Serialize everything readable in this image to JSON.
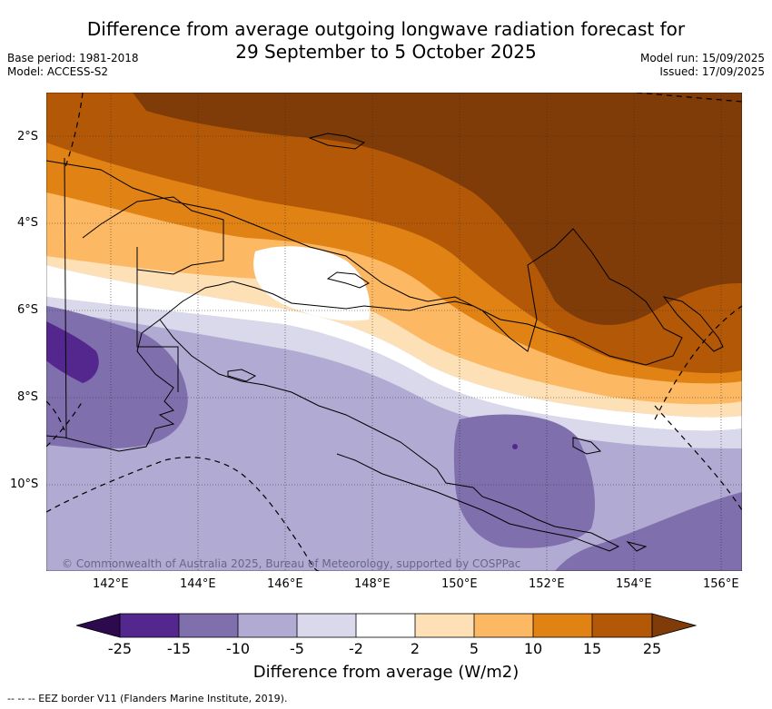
{
  "header": {
    "title_line1": "Difference from average outgoing longwave radiation forecast for",
    "title_line2": "29 September to 5 October 2025",
    "base_period": "Base period: 1981-2018",
    "model": "Model: ACCESS-S2",
    "model_run": "Model run: 15/09/2025",
    "issued": "Issued: 17/09/2025"
  },
  "map": {
    "lat_labels": [
      "2°S",
      "4°S",
      "6°S",
      "8°S",
      "10°S"
    ],
    "lon_labels": [
      "142°E",
      "144°E",
      "146°E",
      "148°E",
      "150°E",
      "152°E",
      "154°E",
      "156°E"
    ],
    "copyright": "© Commonwealth of Australia 2025, Bureau of Meteorology, supported by COSPPac",
    "colors": {
      "lt_-25": "#2d0a4e",
      "-25_-15": "#54278f",
      "-15_-10": "#7f6fac",
      "-10_-5": "#b1abd3",
      "-5_-2": "#d9d9eb",
      "-2_2": "#ffffff",
      "2_5": "#fde0b6",
      "5_10": "#fdb863",
      "10_15": "#e08214",
      "15_25": "#b35806",
      "gt_25": "#7f3b08"
    }
  },
  "colorbar": {
    "labels": [
      "-25",
      "-15",
      "-10",
      "-5",
      "-2",
      "2",
      "5",
      "10",
      "15",
      "25"
    ],
    "title": "Difference from average (W/m2)"
  },
  "footer": {
    "legend": "--  --  -- EEZ border V11 (Flanders Marine Institute, 2019)."
  }
}
